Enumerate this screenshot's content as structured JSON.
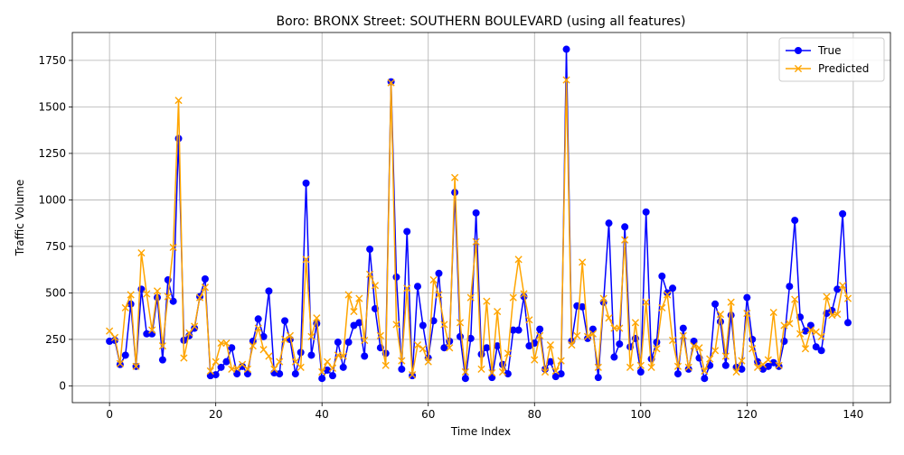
{
  "chart_data": {
    "type": "line",
    "title": "Boro: BRONX Street: SOUTHERN BOULEVARD (using all features)",
    "xlabel": "Time Index",
    "ylabel": "Traffic Volume",
    "xlim": [
      -7,
      147
    ],
    "ylim": [
      -90,
      1900
    ],
    "xticks": [
      0,
      20,
      40,
      60,
      80,
      100,
      120,
      140
    ],
    "yticks": [
      0,
      250,
      500,
      750,
      1000,
      1250,
      1500,
      1750
    ],
    "grid": true,
    "legend_position": "top-right",
    "x": [
      0,
      1,
      2,
      3,
      4,
      5,
      6,
      7,
      8,
      9,
      10,
      11,
      12,
      13,
      14,
      15,
      16,
      17,
      18,
      19,
      20,
      21,
      22,
      23,
      24,
      25,
      26,
      27,
      28,
      29,
      30,
      31,
      32,
      33,
      34,
      35,
      36,
      37,
      38,
      39,
      40,
      41,
      42,
      43,
      44,
      45,
      46,
      47,
      48,
      49,
      50,
      51,
      52,
      53,
      54,
      55,
      56,
      57,
      58,
      59,
      60,
      61,
      62,
      63,
      64,
      65,
      66,
      67,
      68,
      69,
      70,
      71,
      72,
      73,
      74,
      75,
      76,
      77,
      78,
      79,
      80,
      81,
      82,
      83,
      84,
      85,
      86,
      87,
      88,
      89,
      90,
      91,
      92,
      93,
      94,
      95,
      96,
      97,
      98,
      99,
      100,
      101,
      102,
      103,
      104,
      105,
      106,
      107,
      108,
      109,
      110,
      111,
      112,
      113,
      114,
      115,
      116,
      117,
      118,
      119,
      120,
      121,
      122,
      123,
      124,
      125,
      126,
      127,
      128,
      129,
      130,
      131,
      132,
      133,
      134,
      135,
      136,
      137,
      138,
      139
    ],
    "series": [
      {
        "name": "True",
        "color": "#0000ff",
        "marker": "circle",
        "values": [
          240,
          245,
          115,
          165,
          440,
          105,
          520,
          280,
          280,
          475,
          140,
          570,
          455,
          1330,
          245,
          270,
          310,
          480,
          575,
          55,
          60,
          100,
          130,
          205,
          65,
          105,
          65,
          240,
          360,
          265,
          510,
          70,
          65,
          350,
          250,
          65,
          180,
          1090,
          165,
          335,
          40,
          85,
          55,
          235,
          100,
          235,
          325,
          340,
          160,
          735,
          415,
          205,
          175,
          1635,
          585,
          90,
          830,
          55,
          535,
          325,
          150,
          350,
          605,
          205,
          240,
          1040,
          265,
          40,
          255,
          930,
          170,
          205,
          45,
          215,
          115,
          65,
          300,
          300,
          480,
          215,
          230,
          305,
          90,
          130,
          50,
          65,
          1810,
          240,
          430,
          425,
          255,
          305,
          45,
          450,
          875,
          155,
          225,
          855,
          210,
          255,
          75,
          935,
          145,
          235,
          590,
          500,
          525,
          65,
          310,
          90,
          240,
          150,
          40,
          110,
          440,
          345,
          110,
          380,
          100,
          90,
          475,
          250,
          130,
          90,
          105,
          125,
          105,
          240,
          535,
          890,
          370,
          295,
          325,
          210,
          190,
          390,
          405,
          520,
          925,
          340
        ]
      },
      {
        "name": "Predicted",
        "color": "#ffa500",
        "marker": "x",
        "values": [
          295,
          260,
          120,
          420,
          490,
          105,
          715,
          495,
          300,
          510,
          215,
          480,
          745,
          1535,
          150,
          285,
          320,
          475,
          530,
          80,
          130,
          230,
          230,
          90,
          95,
          115,
          90,
          215,
          310,
          195,
          160,
          90,
          130,
          250,
          270,
          130,
          100,
          680,
          265,
          365,
          75,
          130,
          95,
          165,
          160,
          490,
          400,
          470,
          245,
          600,
          540,
          270,
          110,
          1630,
          330,
          135,
          525,
          60,
          220,
          200,
          130,
          570,
          490,
          330,
          205,
          1120,
          340,
          75,
          475,
          775,
          90,
          455,
          70,
          400,
          75,
          175,
          475,
          680,
          495,
          355,
          140,
          270,
          75,
          220,
          80,
          135,
          1645,
          220,
          270,
          665,
          265,
          280,
          100,
          470,
          365,
          310,
          310,
          785,
          100,
          340,
          110,
          450,
          100,
          200,
          420,
          490,
          245,
          105,
          270,
          100,
          215,
          205,
          80,
          145,
          190,
          385,
          160,
          450,
          75,
          135,
          390,
          200,
          100,
          115,
          140,
          395,
          110,
          325,
          335,
          465,
          280,
          200,
          300,
          290,
          265,
          480,
          380,
          385,
          540,
          470
        ]
      }
    ]
  }
}
